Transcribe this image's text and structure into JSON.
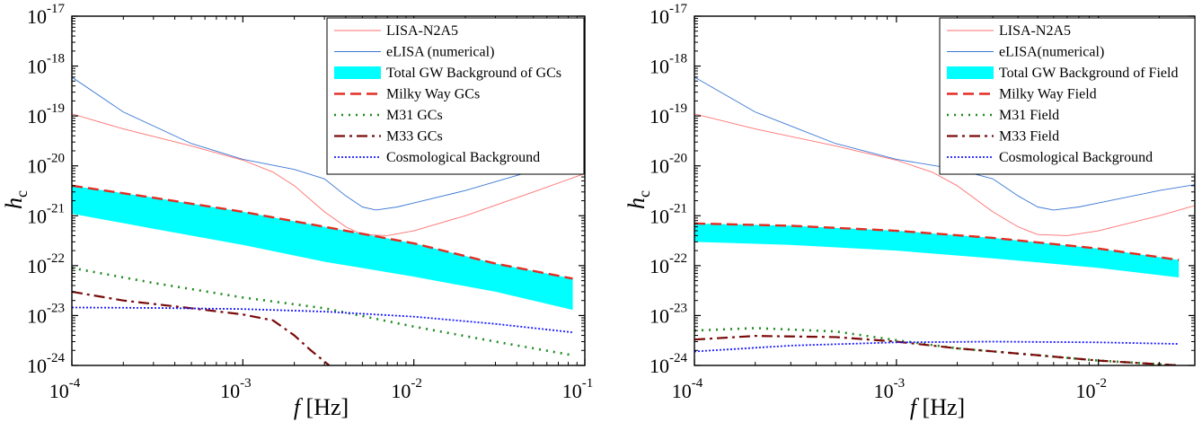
{
  "chart_data": [
    {
      "type": "line",
      "title": "",
      "xlabel": "f [Hz]",
      "ylabel": "h_c",
      "x_scale": "log",
      "y_scale": "log",
      "xlim": [
        0.0001,
        0.1
      ],
      "ylim": [
        1e-24,
        1e-17
      ],
      "x_ticks": [
        {
          "value": 0.0001,
          "mant": "10",
          "exp": "-4"
        },
        {
          "value": 0.001,
          "mant": "10",
          "exp": "-3"
        },
        {
          "value": 0.01,
          "mant": "10",
          "exp": "-2"
        },
        {
          "value": 0.1,
          "mant": "10",
          "exp": "-1"
        }
      ],
      "y_ticks": [
        {
          "value": 1e-24,
          "mant": "10",
          "exp": "-24"
        },
        {
          "value": 1e-23,
          "mant": "10",
          "exp": "-23"
        },
        {
          "value": 1e-22,
          "mant": "10",
          "exp": "-22"
        },
        {
          "value": 1e-21,
          "mant": "10",
          "exp": "-21"
        },
        {
          "value": 1e-20,
          "mant": "10",
          "exp": "-20"
        },
        {
          "value": 1e-19,
          "mant": "10",
          "exp": "-19"
        },
        {
          "value": 1e-18,
          "mant": "10",
          "exp": "-18"
        },
        {
          "value": 1e-17,
          "mant": "10",
          "exp": "-17"
        }
      ],
      "grid": false,
      "legend_position": "top-right",
      "series": [
        {
          "name": "LISA-N2A5",
          "color": "#ff7070",
          "style": "solid",
          "x": [
            0.0001,
            0.0002,
            0.0005,
            0.001,
            0.0015,
            0.002,
            0.003,
            0.004,
            0.005,
            0.007,
            0.01,
            0.02,
            0.05,
            0.1
          ],
          "y": [
            1.1e-19,
            5.5e-20,
            2.5e-20,
            1.3e-20,
            7.5e-21,
            4e-21,
            1.2e-21,
            6e-22,
            4.2e-22,
            4e-22,
            5e-22,
            1e-21,
            3e-21,
            7e-21
          ]
        },
        {
          "name": "eLISA (numerical)",
          "color": "#3a78d4",
          "style": "solid",
          "x": [
            0.0001,
            0.0002,
            0.0005,
            0.001,
            0.002,
            0.003,
            0.004,
            0.005,
            0.006,
            0.008,
            0.01,
            0.02,
            0.05,
            0.1
          ],
          "y": [
            6e-19,
            1.2e-19,
            2.8e-20,
            1.35e-20,
            8.5e-21,
            5.5e-21,
            2.5e-21,
            1.5e-21,
            1.3e-21,
            1.5e-21,
            1.8e-21,
            3.2e-21,
            8e-21,
            1.6e-20
          ]
        },
        {
          "name": "Total GW Background of GCs",
          "color": "#00ffff",
          "style": "band",
          "x": [
            0.0001,
            0.0003,
            0.001,
            0.003,
            0.01,
            0.03,
            0.085
          ],
          "y_upper": [
            4e-21,
            2.3e-21,
            1.2e-21,
            6e-22,
            2.8e-22,
            1.1e-22,
            5.5e-23
          ],
          "y_lower": [
            1.1e-21,
            5.5e-22,
            2.6e-22,
            1.2e-22,
            6e-23,
            3e-23,
            1.3e-23
          ]
        },
        {
          "name": "Milky Way GCs",
          "color": "#e32d22",
          "style": "dashed",
          "x": [
            0.0001,
            0.0003,
            0.001,
            0.003,
            0.01,
            0.03,
            0.085
          ],
          "y": [
            4e-21,
            2.3e-21,
            1.2e-21,
            6e-22,
            2.8e-22,
            1.1e-22,
            5.5e-23
          ]
        },
        {
          "name": "M31 GCs",
          "color": "#1f8a1f",
          "style": "dotted",
          "x": [
            0.0001,
            0.0003,
            0.001,
            0.003,
            0.01,
            0.03,
            0.085
          ],
          "y": [
            9e-23,
            4.5e-23,
            2.3e-23,
            1.4e-23,
            6e-24,
            3e-24,
            1.6e-24
          ]
        },
        {
          "name": "M33 GCs",
          "color": "#7a0a0a",
          "style": "dashdot",
          "x": [
            0.0001,
            0.0002,
            0.0005,
            0.001,
            0.0015,
            0.002,
            0.0025,
            0.0032
          ],
          "y": [
            3e-23,
            2e-23,
            1.4e-23,
            1.05e-23,
            8e-24,
            4e-24,
            2e-24,
            1e-24
          ]
        },
        {
          "name": "Cosmological Background",
          "color": "#1a1aff",
          "style": "dotted-fine",
          "x": [
            0.0001,
            0.0003,
            0.001,
            0.003,
            0.01,
            0.03,
            0.085
          ],
          "y": [
            1.45e-23,
            1.42e-23,
            1.35e-23,
            1.2e-23,
            9.5e-24,
            6.8e-24,
            4.6e-24
          ]
        }
      ]
    },
    {
      "type": "line",
      "title": "",
      "xlabel": "f [Hz]",
      "ylabel": "h_c",
      "x_scale": "log",
      "y_scale": "log",
      "xlim": [
        0.0001,
        0.03
      ],
      "ylim": [
        1e-24,
        1e-17
      ],
      "x_ticks": [
        {
          "value": 0.0001,
          "mant": "10",
          "exp": "-4"
        },
        {
          "value": 0.001,
          "mant": "10",
          "exp": "-3"
        },
        {
          "value": 0.01,
          "mant": "10",
          "exp": "-2"
        }
      ],
      "y_ticks": [
        {
          "value": 1e-24,
          "mant": "10",
          "exp": "-24"
        },
        {
          "value": 1e-23,
          "mant": "10",
          "exp": "-23"
        },
        {
          "value": 1e-22,
          "mant": "10",
          "exp": "-22"
        },
        {
          "value": 1e-21,
          "mant": "10",
          "exp": "-21"
        },
        {
          "value": 1e-20,
          "mant": "10",
          "exp": "-20"
        },
        {
          "value": 1e-19,
          "mant": "10",
          "exp": "-19"
        },
        {
          "value": 1e-18,
          "mant": "10",
          "exp": "-18"
        },
        {
          "value": 1e-17,
          "mant": "10",
          "exp": "-17"
        }
      ],
      "grid": false,
      "legend_position": "top-right",
      "series": [
        {
          "name": "LISA-N2A5",
          "color": "#ff7070",
          "style": "solid",
          "x": [
            0.0001,
            0.0002,
            0.0005,
            0.001,
            0.0015,
            0.002,
            0.003,
            0.004,
            0.005,
            0.007,
            0.01,
            0.02,
            0.03
          ],
          "y": [
            1.1e-19,
            5.5e-20,
            2.5e-20,
            1.3e-20,
            7.5e-21,
            4e-21,
            1.2e-21,
            6e-22,
            4.2e-22,
            4e-22,
            5e-22,
            1e-21,
            1.6e-21
          ]
        },
        {
          "name": "eLISA(numerical)",
          "color": "#3a78d4",
          "style": "solid",
          "x": [
            0.0001,
            0.0002,
            0.0005,
            0.001,
            0.002,
            0.003,
            0.004,
            0.005,
            0.006,
            0.008,
            0.01,
            0.02,
            0.03
          ],
          "y": [
            6e-19,
            1.2e-19,
            2.8e-20,
            1.35e-20,
            8.5e-21,
            5.5e-21,
            2.5e-21,
            1.5e-21,
            1.3e-21,
            1.5e-21,
            1.8e-21,
            3.2e-21,
            4.2e-21
          ]
        },
        {
          "name": "Total GW Background of Field",
          "color": "#00ffff",
          "style": "band",
          "x": [
            0.0001,
            0.0003,
            0.001,
            0.003,
            0.01,
            0.025
          ],
          "y_upper": [
            7e-22,
            6.3e-22,
            5e-22,
            3.6e-22,
            2.2e-22,
            1.3e-22
          ],
          "y_lower": [
            3e-22,
            2.6e-22,
            2e-22,
            1.4e-22,
            9e-23,
            5.8e-23
          ]
        },
        {
          "name": "Milky Way Field",
          "color": "#e32d22",
          "style": "dashed",
          "x": [
            0.0001,
            0.0003,
            0.001,
            0.003,
            0.01,
            0.025
          ],
          "y": [
            7e-22,
            6.3e-22,
            5e-22,
            3.6e-22,
            2.2e-22,
            1.3e-22
          ]
        },
        {
          "name": "M31 Field",
          "color": "#1f8a1f",
          "style": "dotted",
          "x": [
            0.0001,
            0.0002,
            0.0005,
            0.001,
            0.002,
            0.005,
            0.01,
            0.025
          ],
          "y": [
            5e-24,
            5.6e-24,
            4.8e-24,
            3.2e-24,
            2.2e-24,
            1.6e-24,
            1.25e-24,
            1e-24
          ]
        },
        {
          "name": "M33 Field",
          "color": "#7a0a0a",
          "style": "dashdot",
          "x": [
            0.0001,
            0.0002,
            0.0005,
            0.001,
            0.002,
            0.005,
            0.01,
            0.025
          ],
          "y": [
            3.3e-24,
            3.9e-24,
            3.7e-24,
            3e-24,
            2.2e-24,
            1.6e-24,
            1.25e-24,
            1e-24
          ]
        },
        {
          "name": "Cosmological Background",
          "color": "#1a1aff",
          "style": "dotted-fine",
          "x": [
            0.0001,
            0.0003,
            0.001,
            0.003,
            0.01,
            0.025
          ],
          "y": [
            1.9e-24,
            2.5e-24,
            2.9e-24,
            3e-24,
            2.9e-24,
            2.7e-24
          ]
        }
      ]
    }
  ]
}
